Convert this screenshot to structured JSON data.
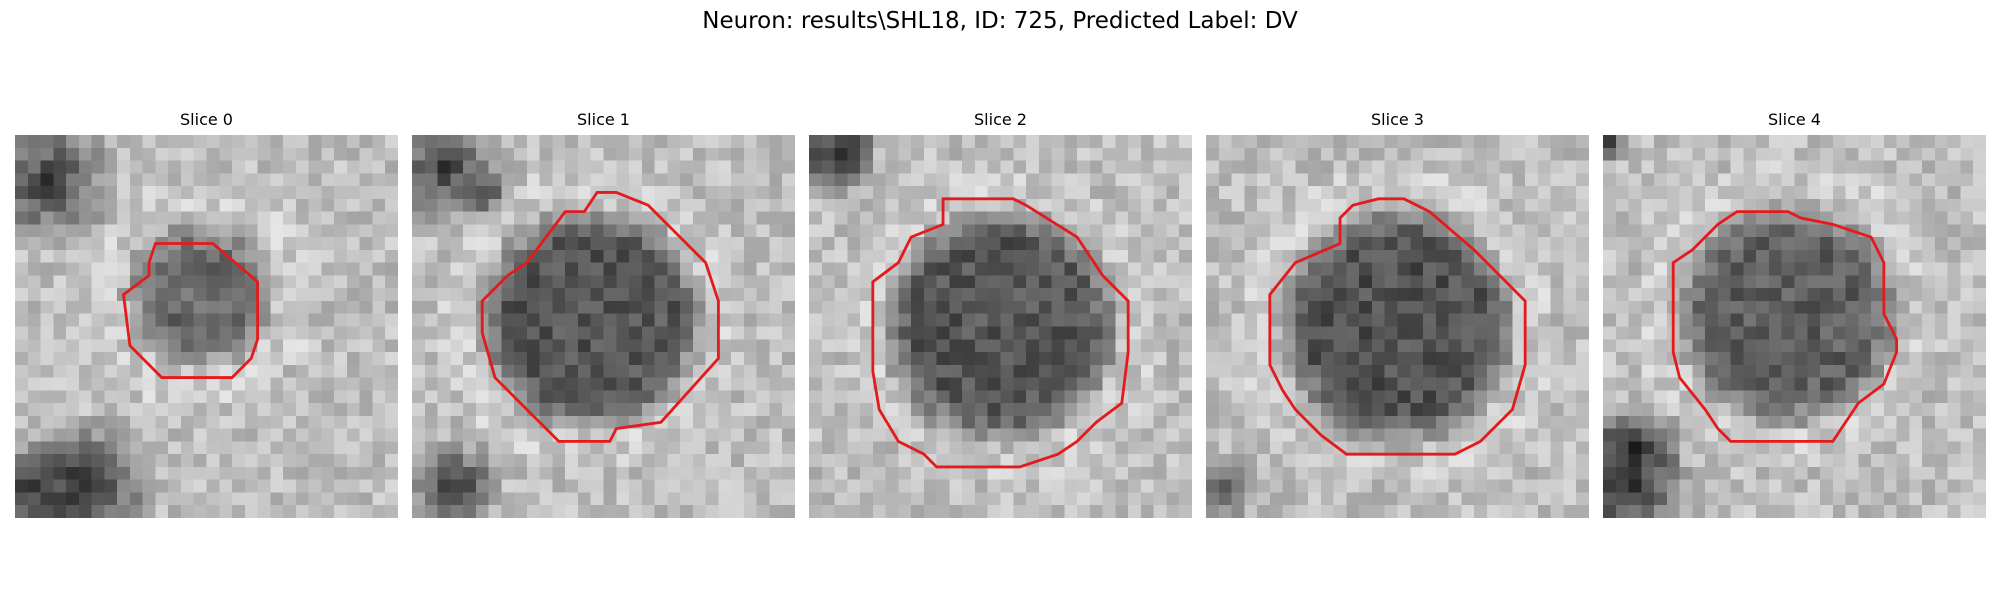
{
  "figure": {
    "title": "Neuron: results\\SHL18, ID: 725, Predicted Label: DV"
  },
  "colors": {
    "background": "#ffffff",
    "contour": "#e41a1c",
    "grayscale_cmap": "gray"
  },
  "slices": [
    {
      "title": "Slice 0",
      "contour_color": "#e41a1c",
      "blob_size": "small",
      "darkness": "medium"
    },
    {
      "title": "Slice 1",
      "contour_color": "#e41a1c",
      "blob_size": "large",
      "darkness": "dark"
    },
    {
      "title": "Slice 2",
      "contour_color": "#e41a1c",
      "blob_size": "large",
      "darkness": "dark"
    },
    {
      "title": "Slice 3",
      "contour_color": "#e41a1c",
      "blob_size": "large",
      "darkness": "dark"
    },
    {
      "title": "Slice 4",
      "contour_color": "#e41a1c",
      "blob_size": "large",
      "darkness": "medium"
    }
  ]
}
